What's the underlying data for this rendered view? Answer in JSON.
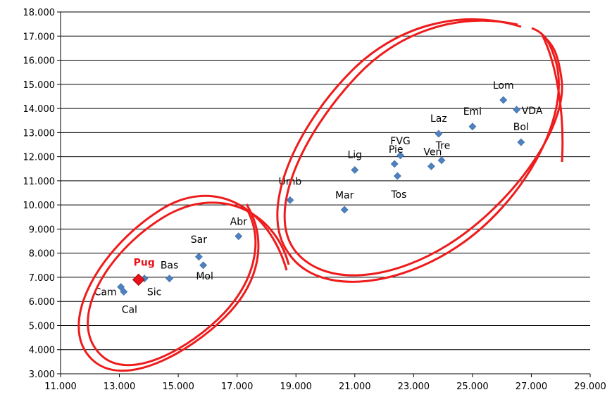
{
  "chart_data": {
    "type": "scatter",
    "title": "",
    "xlabel": "",
    "ylabel": "",
    "xlim": [
      11000,
      29000
    ],
    "ylim": [
      3000,
      18000
    ],
    "grid": "horizontal",
    "x_ticks": [
      "11.000",
      "13.000",
      "15.000",
      "17.000",
      "19.000",
      "21.000",
      "23.000",
      "25.000",
      "27.000",
      "29.000"
    ],
    "y_ticks": [
      "3.000",
      "4.000",
      "5.000",
      "6.000",
      "7.000",
      "8.000",
      "9.000",
      "10.000",
      "11.000",
      "12.000",
      "13.000",
      "14.000",
      "15.000",
      "16.000",
      "17.000",
      "18.000"
    ],
    "marker_color": "#4F81BD",
    "highlight_color": "#E8131A",
    "annotation_color": "#EE1C1C",
    "points": [
      {
        "label": "Cam",
        "x": 13050,
        "y": 6600
      },
      {
        "label": "Cal",
        "x": 13150,
        "y": 6400
      },
      {
        "label": "Sic",
        "x": 13850,
        "y": 6950
      },
      {
        "label": "Pug",
        "x": 13650,
        "y": 6900,
        "highlight": true
      },
      {
        "label": "Bas",
        "x": 14700,
        "y": 6950
      },
      {
        "label": "Sar",
        "x": 15700,
        "y": 7850
      },
      {
        "label": "Mol",
        "x": 15850,
        "y": 7500
      },
      {
        "label": "Abr",
        "x": 17050,
        "y": 8700
      },
      {
        "label": "Umb",
        "x": 18800,
        "y": 10200
      },
      {
        "label": "Mar",
        "x": 20650,
        "y": 9800
      },
      {
        "label": "Lig",
        "x": 21000,
        "y": 11450
      },
      {
        "label": "Pie",
        "x": 22350,
        "y": 11700
      },
      {
        "label": "FVG",
        "x": 22550,
        "y": 12050
      },
      {
        "label": "Tos",
        "x": 22450,
        "y": 11200
      },
      {
        "label": "Ven",
        "x": 23600,
        "y": 11600
      },
      {
        "label": "Tre",
        "x": 23950,
        "y": 11850
      },
      {
        "label": "Laz",
        "x": 23850,
        "y": 12950
      },
      {
        "label": "Emi",
        "x": 25000,
        "y": 13250
      },
      {
        "label": "Lom",
        "x": 26050,
        "y": 14350
      },
      {
        "label": "VDA",
        "x": 26500,
        "y": 13950
      },
      {
        "label": "Bol",
        "x": 26650,
        "y": 12600
      }
    ],
    "annotations": [
      {
        "type": "hand-drawn-ellipse",
        "encloses": [
          "Cam",
          "Cal",
          "Sic",
          "Pug",
          "Bas",
          "Sar",
          "Mol",
          "Abr"
        ]
      },
      {
        "type": "hand-drawn-ellipse",
        "encloses": [
          "Umb",
          "Mar",
          "Lig",
          "Pie",
          "FVG",
          "Tos",
          "Ven",
          "Tre",
          "Laz",
          "Emi",
          "Lom",
          "VDA",
          "Bol"
        ]
      }
    ]
  }
}
